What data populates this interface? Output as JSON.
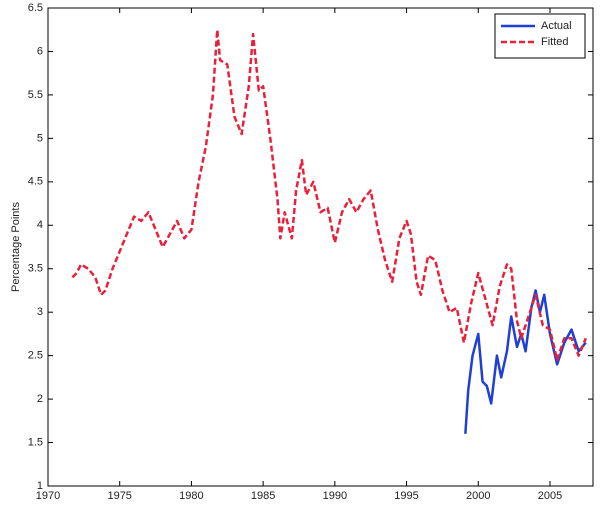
{
  "chart_data": {
    "type": "line",
    "y_label": "Percentage Points",
    "xlim": [
      1970,
      2008
    ],
    "ylim": [
      1,
      6.5
    ],
    "xticks": [
      1970,
      1975,
      1980,
      1985,
      1990,
      1995,
      2000,
      2005
    ],
    "yticks": [
      1,
      1.5,
      2,
      2.5,
      3,
      3.5,
      4,
      4.5,
      5,
      5.5,
      6,
      6.5
    ],
    "legend": "upper-right",
    "series": [
      {
        "name": "Actual",
        "color": "#1f3fd6",
        "dash": false,
        "x": [
          1999.1,
          1999.3,
          1999.6,
          2000.0,
          2000.3,
          2000.6,
          2000.9,
          2001.3,
          2001.6,
          2002.0,
          2002.3,
          2002.7,
          2003.0,
          2003.3,
          2003.7,
          2004.0,
          2004.3,
          2004.6,
          2005.0,
          2005.5,
          2006.0,
          2006.5,
          2007.0,
          2007.5
        ],
        "values": [
          1.6,
          2.1,
          2.5,
          2.75,
          2.2,
          2.15,
          1.95,
          2.5,
          2.25,
          2.55,
          2.95,
          2.6,
          2.75,
          2.55,
          3.05,
          3.25,
          3.0,
          3.2,
          2.75,
          2.4,
          2.65,
          2.8,
          2.55,
          2.65
        ]
      },
      {
        "name": "Fitted",
        "color": "#e8203a",
        "dash": true,
        "x": [
          1971.7,
          1972.0,
          1972.3,
          1972.8,
          1973.3,
          1973.7,
          1974.0,
          1974.5,
          1975.0,
          1975.5,
          1976.0,
          1976.5,
          1977.0,
          1977.5,
          1978.0,
          1978.5,
          1979.0,
          1979.5,
          1980.0,
          1980.5,
          1981.0,
          1981.5,
          1981.8,
          1982.0,
          1982.5,
          1983.0,
          1983.5,
          1984.0,
          1984.3,
          1984.7,
          1985.0,
          1985.5,
          1986.0,
          1986.2,
          1986.5,
          1987.0,
          1987.3,
          1987.7,
          1988.0,
          1988.5,
          1989.0,
          1989.5,
          1990.0,
          1990.5,
          1991.0,
          1991.5,
          1992.0,
          1992.5,
          1993.0,
          1993.5,
          1994.0,
          1994.5,
          1995.0,
          1995.3,
          1995.7,
          1996.0,
          1996.5,
          1997.0,
          1997.5,
          1998.0,
          1998.5,
          1999.0,
          1999.5,
          2000.0,
          2000.5,
          2001.0,
          2001.5,
          2002.0,
          2002.3,
          2002.7,
          2003.0,
          2003.5,
          2004.0,
          2004.5,
          2005.0,
          2005.5,
          2006.0,
          2006.5,
          2007.0,
          2007.5
        ],
        "values": [
          3.4,
          3.45,
          3.55,
          3.5,
          3.4,
          3.2,
          3.25,
          3.5,
          3.7,
          3.9,
          4.1,
          4.05,
          4.15,
          3.95,
          3.75,
          3.9,
          4.05,
          3.85,
          3.95,
          4.5,
          4.9,
          5.5,
          6.25,
          5.9,
          5.85,
          5.25,
          5.05,
          5.6,
          6.2,
          5.55,
          5.6,
          5.0,
          4.3,
          3.85,
          4.15,
          3.85,
          4.4,
          4.75,
          4.35,
          4.5,
          4.15,
          4.2,
          3.8,
          4.15,
          4.3,
          4.15,
          4.3,
          4.4,
          3.95,
          3.6,
          3.35,
          3.85,
          4.05,
          3.9,
          3.35,
          3.2,
          3.65,
          3.6,
          3.25,
          3.0,
          3.05,
          2.65,
          3.1,
          3.45,
          3.15,
          2.85,
          3.3,
          3.55,
          3.5,
          2.9,
          2.7,
          2.95,
          3.2,
          2.85,
          2.8,
          2.45,
          2.7,
          2.7,
          2.5,
          2.7
        ]
      }
    ]
  }
}
